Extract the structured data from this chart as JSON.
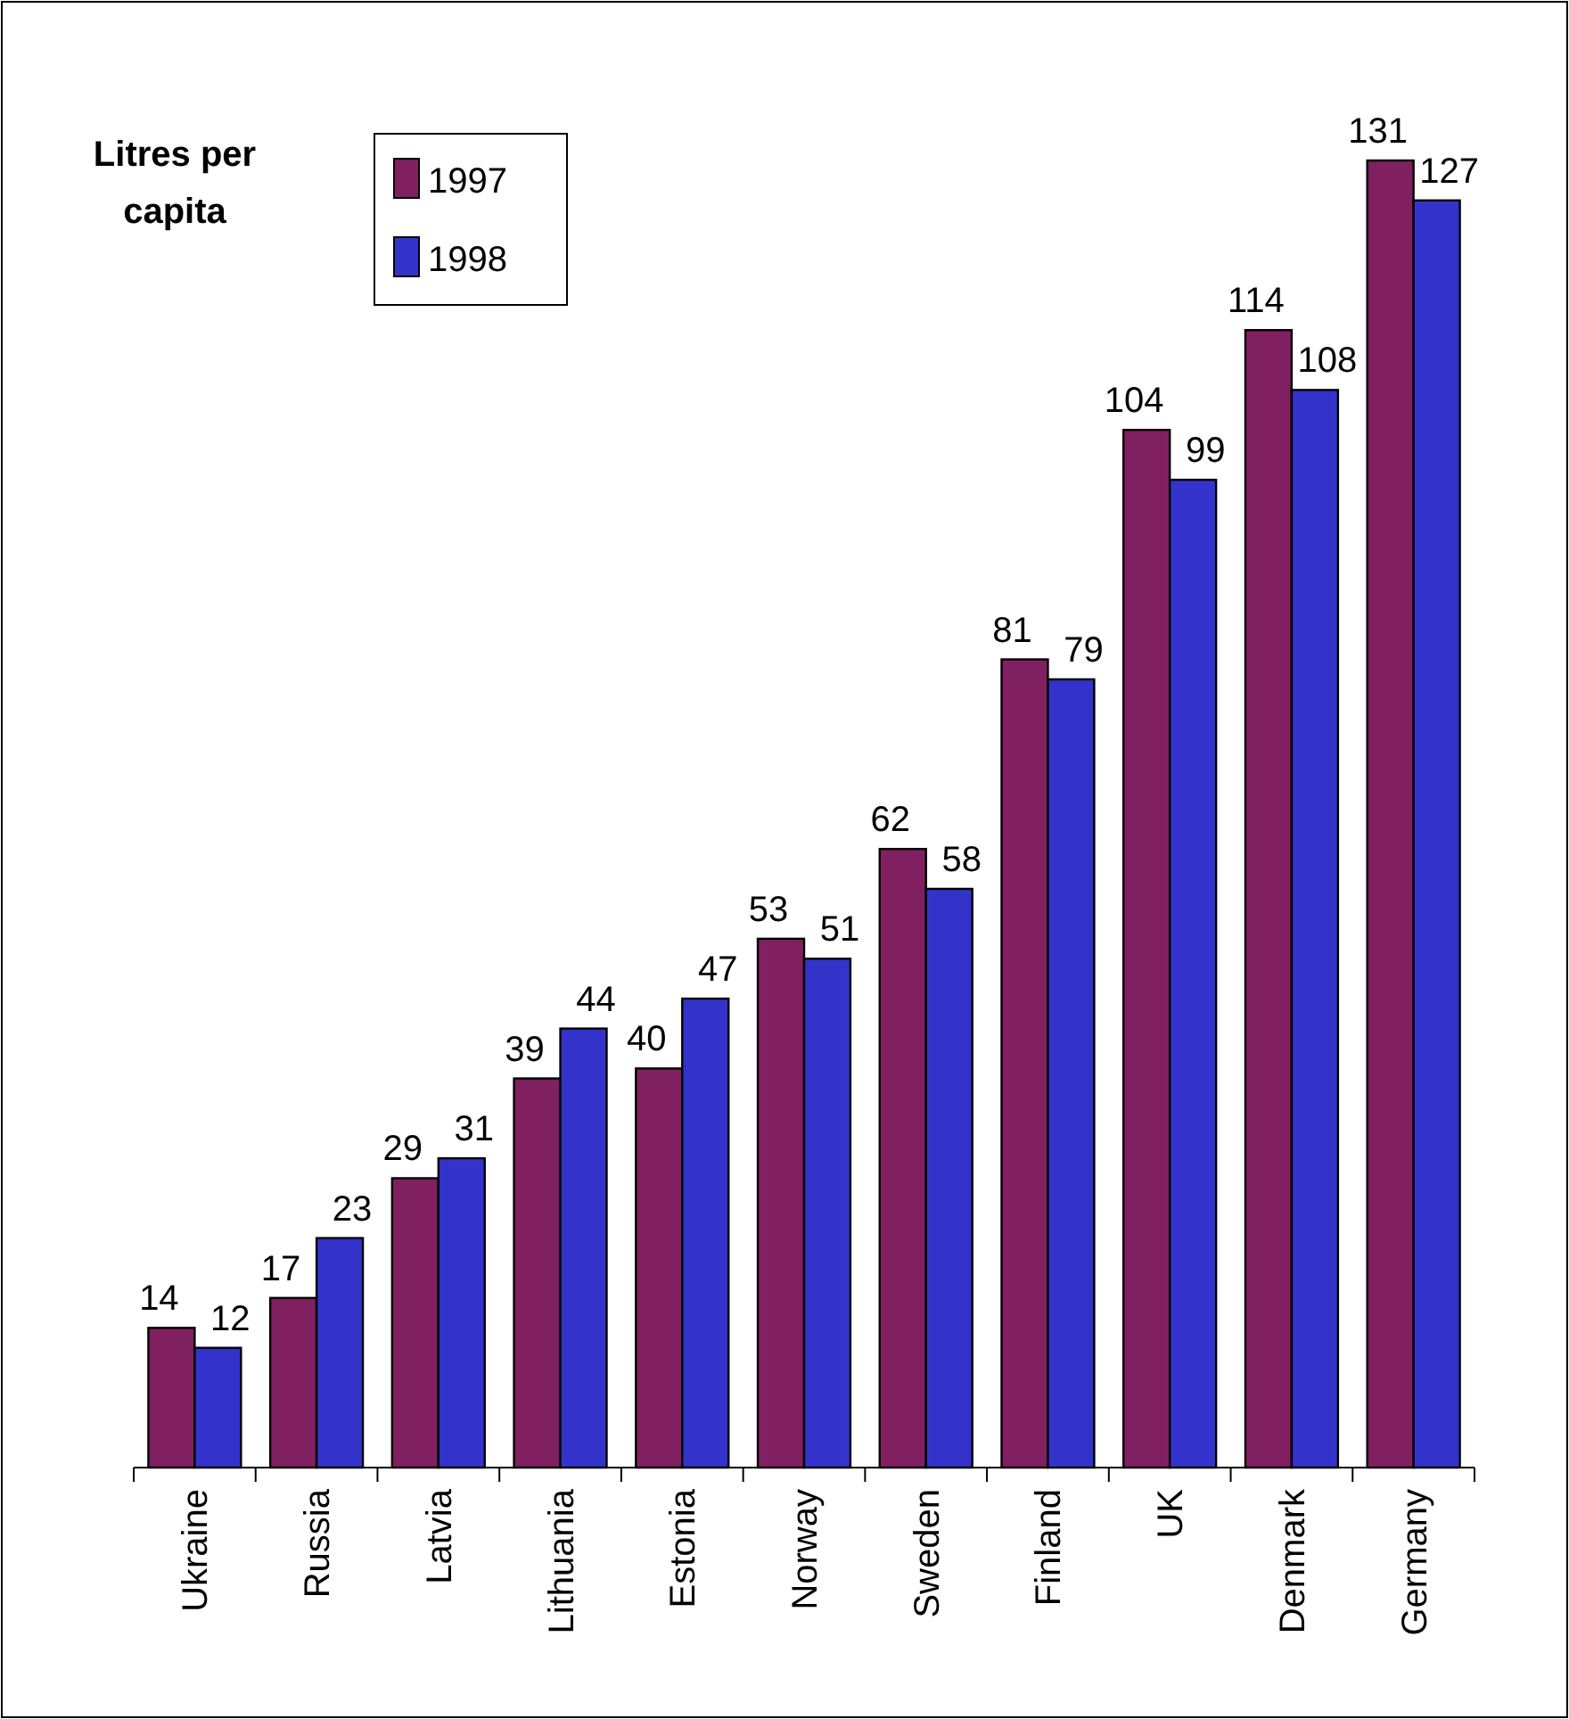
{
  "chart_data": {
    "type": "bar",
    "ylabel": "Litres per capita",
    "categories": [
      "Ukraine",
      "Russia",
      "Latvia",
      "Lithuania",
      "Estonia",
      "Norway",
      "Sweden",
      "Finland",
      "UK",
      "Denmark",
      "Germany"
    ],
    "series": [
      {
        "name": "1997",
        "color": "#802060",
        "values": [
          14,
          17,
          29,
          39,
          40,
          53,
          62,
          81,
          104,
          114,
          131
        ]
      },
      {
        "name": "1998",
        "color": "#3333cc",
        "values": [
          12,
          23,
          31,
          44,
          47,
          51,
          58,
          79,
          99,
          108,
          127
        ]
      }
    ],
    "data_labels": true,
    "legend": "top left"
  }
}
